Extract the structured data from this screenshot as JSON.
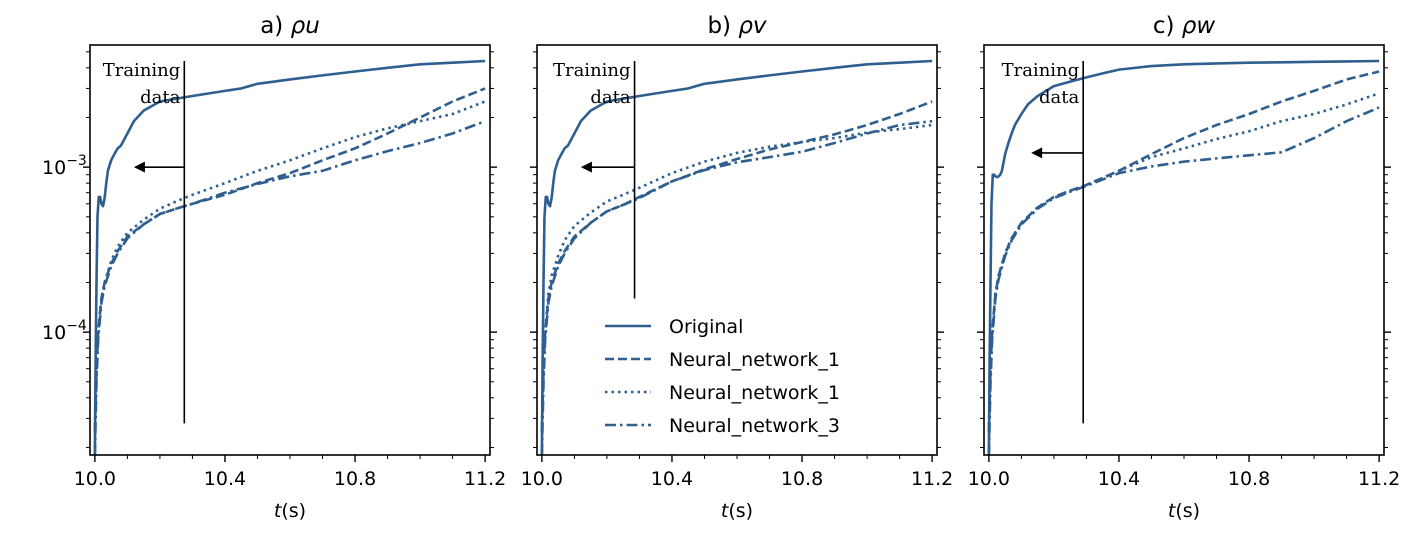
{
  "figure": {
    "line_color": "#2f5f8f",
    "legend": {
      "placement": "lower-right of panel b",
      "entries": [
        {
          "label": "Original",
          "style": "solid"
        },
        {
          "label": "Neural_network_1",
          "style": "dashed"
        },
        {
          "label": "Neural_network_1",
          "style": "dotted"
        },
        {
          "label": "Neural_network_3",
          "style": "dashdot"
        }
      ]
    }
  },
  "chart_data": [
    {
      "type": "line",
      "title": "a) ρu",
      "title_prefix": "a) ",
      "title_symbol": "ρu",
      "xlabel_var": "t",
      "xlabel_unit": "(s)",
      "xlim": [
        9.985,
        11.215
      ],
      "ylim": [
        1.8e-05,
        0.0055
      ],
      "yscale": "log",
      "xticks": [
        10.0,
        10.4,
        10.8,
        11.2
      ],
      "xtick_labels": [
        "10.0",
        "10.4",
        "10.8",
        "11.2"
      ],
      "yticks": [
        0.001,
        0.0001
      ],
      "ytick_labels": [
        {
          "base": "10",
          "exp": "−3"
        },
        {
          "base": "10",
          "exp": "−4"
        }
      ],
      "annotation": {
        "line1": "Training",
        "line2": "data",
        "x": 10.275,
        "y_top": 0.0055,
        "y_bottom": 2.8e-05,
        "arrow_from": 10.275,
        "arrow_to": 10.12,
        "arrow_y": 0.001
      },
      "series": [
        {
          "name": "Original",
          "style": "solid",
          "x": [
            10.0,
            10.002,
            10.005,
            10.008,
            10.012,
            10.016,
            10.02,
            10.025,
            10.03,
            10.035,
            10.04,
            10.05,
            10.06,
            10.07,
            10.08,
            10.1,
            10.12,
            10.15,
            10.2,
            10.25,
            10.3,
            10.4,
            10.45,
            10.5,
            10.6,
            10.7,
            10.8,
            10.9,
            11.0,
            11.1,
            11.2
          ],
          "y": [
            1.8e-05,
            6e-05,
            0.0002,
            0.0005,
            0.00066,
            0.00066,
            0.0006,
            0.00058,
            0.00065,
            0.0008,
            0.00095,
            0.0011,
            0.0012,
            0.0013,
            0.00135,
            0.0016,
            0.0019,
            0.0022,
            0.0025,
            0.0026,
            0.0027,
            0.0029,
            0.003,
            0.0032,
            0.0034,
            0.0036,
            0.0038,
            0.004,
            0.0042,
            0.0043,
            0.0044
          ]
        },
        {
          "name": "Neural_network_1",
          "style": "dashed",
          "x": [
            10.0,
            10.005,
            10.01,
            10.02,
            10.03,
            10.05,
            10.07,
            10.1,
            10.15,
            10.2,
            10.25,
            10.3,
            10.4,
            10.5,
            10.6,
            10.7,
            10.8,
            10.9,
            11.0,
            11.1,
            11.2
          ],
          "y": [
            2.5e-05,
            6e-05,
            0.0001,
            0.00016,
            0.0002,
            0.00026,
            0.00031,
            0.00038,
            0.00045,
            0.00052,
            0.00056,
            0.0006,
            0.00068,
            0.0008,
            0.00092,
            0.0011,
            0.0013,
            0.0016,
            0.002,
            0.0025,
            0.003
          ]
        },
        {
          "name": "Neural_network_1",
          "style": "dotted",
          "x": [
            10.0,
            10.005,
            10.01,
            10.02,
            10.03,
            10.05,
            10.07,
            10.1,
            10.15,
            10.2,
            10.25,
            10.3,
            10.4,
            10.5,
            10.6,
            10.7,
            10.8,
            10.9,
            11.0,
            11.1,
            11.2
          ],
          "y": [
            2.5e-05,
            6e-05,
            0.0001,
            0.00016,
            0.0002,
            0.00027,
            0.00033,
            0.0004,
            0.00048,
            0.00056,
            0.00062,
            0.00068,
            0.0008,
            0.00095,
            0.0011,
            0.0013,
            0.00152,
            0.00172,
            0.0019,
            0.0021,
            0.0025
          ]
        },
        {
          "name": "Neural_network_3",
          "style": "dashdot",
          "x": [
            10.0,
            10.005,
            10.01,
            10.02,
            10.03,
            10.05,
            10.07,
            10.1,
            10.15,
            10.2,
            10.25,
            10.3,
            10.4,
            10.5,
            10.6,
            10.7,
            10.8,
            10.9,
            11.0,
            11.1,
            11.2
          ],
          "y": [
            1.8e-05,
            5e-05,
            9e-05,
            0.00015,
            0.00019,
            0.00025,
            0.0003,
            0.00037,
            0.00045,
            0.00052,
            0.00056,
            0.0006,
            0.0007,
            0.00079,
            0.00088,
            0.00095,
            0.0011,
            0.00125,
            0.0014,
            0.0016,
            0.0019
          ]
        }
      ]
    },
    {
      "type": "line",
      "title": "b) ρv",
      "title_prefix": "b) ",
      "title_symbol": "ρv",
      "xlabel_var": "t",
      "xlabel_unit": "(s)",
      "xlim": [
        9.985,
        11.215
      ],
      "ylim": [
        1.8e-05,
        0.0055
      ],
      "yscale": "log",
      "xticks": [
        10.0,
        10.4,
        10.8,
        11.2
      ],
      "xtick_labels": [
        "10.0",
        "10.4",
        "10.8",
        "11.2"
      ],
      "yticks": [
        0.001,
        0.0001
      ],
      "ytick_labels": [
        {
          "base": "10",
          "exp": "−3"
        },
        {
          "base": "10",
          "exp": "−4"
        }
      ],
      "annotation": {
        "line1": "Training",
        "line2": "data",
        "x": 10.285,
        "y_top": 0.0055,
        "y_bottom": 0.00016,
        "arrow_from": 10.285,
        "arrow_to": 10.12,
        "arrow_y": 0.001
      },
      "series": [
        {
          "name": "Original",
          "style": "solid",
          "x": [
            10.0,
            10.002,
            10.005,
            10.008,
            10.012,
            10.016,
            10.02,
            10.025,
            10.03,
            10.035,
            10.04,
            10.05,
            10.06,
            10.07,
            10.08,
            10.1,
            10.12,
            10.15,
            10.2,
            10.25,
            10.3,
            10.4,
            10.45,
            10.5,
            10.6,
            10.7,
            10.8,
            10.9,
            11.0,
            11.1,
            11.2
          ],
          "y": [
            1.8e-05,
            6e-05,
            0.0002,
            0.0005,
            0.00066,
            0.00066,
            0.0006,
            0.00058,
            0.00065,
            0.0008,
            0.00095,
            0.0011,
            0.0012,
            0.0013,
            0.00135,
            0.0016,
            0.0019,
            0.0022,
            0.0025,
            0.0026,
            0.0027,
            0.0029,
            0.003,
            0.0032,
            0.0034,
            0.0036,
            0.0038,
            0.004,
            0.0042,
            0.0043,
            0.0044
          ]
        },
        {
          "name": "Neural_network_1",
          "style": "dashed",
          "x": [
            10.0,
            10.005,
            10.01,
            10.02,
            10.03,
            10.05,
            10.07,
            10.1,
            10.15,
            10.2,
            10.25,
            10.3,
            10.4,
            10.5,
            10.6,
            10.7,
            10.8,
            10.9,
            11.0,
            11.1,
            11.2
          ],
          "y": [
            2.5e-05,
            6e-05,
            0.0001,
            0.00016,
            0.0002,
            0.00026,
            0.00031,
            0.00038,
            0.00046,
            0.00054,
            0.00059,
            0.00066,
            0.00082,
            0.00097,
            0.00112,
            0.00128,
            0.00142,
            0.00158,
            0.0018,
            0.0021,
            0.0025
          ]
        },
        {
          "name": "Neural_network_1",
          "style": "dotted",
          "x": [
            10.0,
            10.005,
            10.01,
            10.02,
            10.03,
            10.05,
            10.07,
            10.1,
            10.15,
            10.2,
            10.25,
            10.3,
            10.4,
            10.5,
            10.6,
            10.7,
            10.8,
            10.9,
            11.0,
            11.1,
            11.2
          ],
          "y": [
            2.5e-05,
            6e-05,
            0.0001,
            0.00017,
            0.00022,
            0.00029,
            0.00036,
            0.00044,
            0.00053,
            0.00062,
            0.00068,
            0.00075,
            0.00092,
            0.00108,
            0.00122,
            0.00133,
            0.00142,
            0.0015,
            0.00162,
            0.0017,
            0.0018
          ]
        },
        {
          "name": "Neural_network_3",
          "style": "dashdot",
          "x": [
            10.0,
            10.005,
            10.01,
            10.02,
            10.03,
            10.05,
            10.07,
            10.1,
            10.15,
            10.2,
            10.25,
            10.3,
            10.4,
            10.5,
            10.6,
            10.7,
            10.8,
            10.9,
            11.0,
            11.1,
            11.2
          ],
          "y": [
            1.8e-05,
            5e-05,
            9e-05,
            0.00015,
            0.00019,
            0.00025,
            0.0003,
            0.00037,
            0.00046,
            0.00054,
            0.00059,
            0.00065,
            0.00082,
            0.00096,
            0.00107,
            0.00115,
            0.00124,
            0.0014,
            0.0016,
            0.0018,
            0.0019
          ]
        }
      ]
    },
    {
      "type": "line",
      "title": "c) ρw",
      "title_prefix": "c) ",
      "title_symbol": "ρw",
      "xlabel_var": "t",
      "xlabel_unit": "(s)",
      "xlim": [
        9.985,
        11.215
      ],
      "ylim": [
        1.8e-05,
        0.0055
      ],
      "yscale": "log",
      "xticks": [
        10.0,
        10.4,
        10.8,
        11.2
      ],
      "xtick_labels": [
        "10.0",
        "10.4",
        "10.8",
        "11.2"
      ],
      "yticks": [
        0.001,
        0.0001
      ],
      "ytick_labels": [
        {
          "base": "10",
          "exp": "−3"
        },
        {
          "base": "10",
          "exp": "−4"
        }
      ],
      "annotation": {
        "line1": "Training",
        "line2": "data",
        "x": 10.29,
        "y_top": 0.0055,
        "y_bottom": 2.8e-05,
        "arrow_from": 10.29,
        "arrow_to": 10.13,
        "arrow_y": 0.00122
      },
      "series": [
        {
          "name": "Original",
          "style": "solid",
          "x": [
            10.0,
            10.002,
            10.005,
            10.008,
            10.012,
            10.016,
            10.02,
            10.025,
            10.03,
            10.035,
            10.04,
            10.05,
            10.06,
            10.07,
            10.08,
            10.1,
            10.12,
            10.15,
            10.2,
            10.25,
            10.3,
            10.35,
            10.4,
            10.5,
            10.6,
            10.7,
            10.8,
            10.9,
            11.0,
            11.1,
            11.2
          ],
          "y": [
            1.8e-05,
            6e-05,
            0.0002,
            0.0006,
            0.0009,
            0.0009,
            0.00088,
            0.00087,
            0.00088,
            0.0009,
            0.00095,
            0.0012,
            0.0014,
            0.0016,
            0.0018,
            0.0021,
            0.0024,
            0.0027,
            0.0031,
            0.0033,
            0.0035,
            0.0037,
            0.0039,
            0.0041,
            0.0042,
            0.00425,
            0.0043,
            0.00432,
            0.00435,
            0.00437,
            0.0044
          ]
        },
        {
          "name": "Neural_network_1",
          "style": "dashed",
          "x": [
            10.0,
            10.005,
            10.01,
            10.02,
            10.03,
            10.05,
            10.07,
            10.1,
            10.15,
            10.2,
            10.25,
            10.3,
            10.4,
            10.5,
            10.6,
            10.7,
            10.8,
            10.9,
            11.0,
            11.1,
            11.2
          ],
          "y": [
            2.5e-05,
            6e-05,
            0.0001,
            0.00017,
            0.00022,
            0.0003,
            0.00037,
            0.00046,
            0.00057,
            0.00066,
            0.00072,
            0.00078,
            0.00095,
            0.0012,
            0.0015,
            0.0018,
            0.0021,
            0.0025,
            0.0029,
            0.0034,
            0.0038
          ]
        },
        {
          "name": "Neural_network_1",
          "style": "dotted",
          "x": [
            10.0,
            10.005,
            10.01,
            10.02,
            10.03,
            10.05,
            10.07,
            10.1,
            10.15,
            10.2,
            10.25,
            10.3,
            10.4,
            10.5,
            10.6,
            10.7,
            10.8,
            10.9,
            11.0,
            11.1,
            11.2
          ],
          "y": [
            2.5e-05,
            6e-05,
            0.0001,
            0.00017,
            0.00022,
            0.0003,
            0.00037,
            0.00046,
            0.00057,
            0.00066,
            0.00072,
            0.00078,
            0.00095,
            0.00115,
            0.0013,
            0.00148,
            0.00165,
            0.0019,
            0.0021,
            0.0024,
            0.0028
          ]
        },
        {
          "name": "Neural_network_3",
          "style": "dashdot",
          "x": [
            10.0,
            10.005,
            10.01,
            10.02,
            10.03,
            10.05,
            10.07,
            10.1,
            10.15,
            10.2,
            10.25,
            10.3,
            10.4,
            10.5,
            10.6,
            10.7,
            10.8,
            10.9,
            11.0,
            11.1,
            11.2
          ],
          "y": [
            1.8e-05,
            5e-05,
            9e-05,
            0.00016,
            0.00021,
            0.00029,
            0.00036,
            0.00045,
            0.00056,
            0.00065,
            0.00071,
            0.00077,
            0.00092,
            0.00101,
            0.00108,
            0.00113,
            0.00118,
            0.00123,
            0.0015,
            0.0019,
            0.0023
          ]
        }
      ]
    }
  ]
}
